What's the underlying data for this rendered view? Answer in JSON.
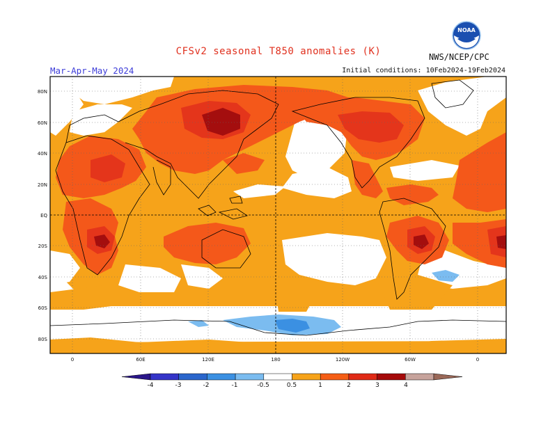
{
  "header": {
    "title": "CFSv2 seasonal T850 anomalies (K)",
    "period": "Mar-Apr-May 2024",
    "initial_conditions": "Initial conditions: 10Feb2024-19Feb2024",
    "agency": "NWS/NCEP/CPC",
    "logo_text": "NOAA",
    "logo_icon": "noaa-logo-icon"
  },
  "axes": {
    "lat_labels": [
      "80N",
      "60N",
      "40N",
      "20N",
      "EQ",
      "20S",
      "40S",
      "60S",
      "80S"
    ],
    "lon_labels": [
      "0",
      "60E",
      "120E",
      "180",
      "120W",
      "60W",
      "0"
    ]
  },
  "colorbar": {
    "tick_labels": [
      "-4",
      "-3",
      "-2",
      "-1",
      "-0.5",
      "0.5",
      "1",
      "2",
      "3",
      "4"
    ],
    "colors": [
      "#2a1689",
      "#3434c8",
      "#2a66cc",
      "#3b90e2",
      "#7bbcf0",
      "#ffffff",
      "#f6a31a",
      "#f55e15",
      "#e02a16",
      "#a50a0a",
      "#c7a39c",
      "#9a6858"
    ]
  },
  "colors": {
    "ocean_base": "#f6a31a",
    "neutral": "#ffffff",
    "warm_1": "#f6a31a",
    "warm_2": "#f4581a",
    "warm_3": "#e4351b",
    "warm_4": "#a40e0e",
    "cool_1": "#7bbcf0",
    "cool_2": "#3b90e2",
    "title": "#e0301e",
    "period": "#3d3dd8"
  }
}
